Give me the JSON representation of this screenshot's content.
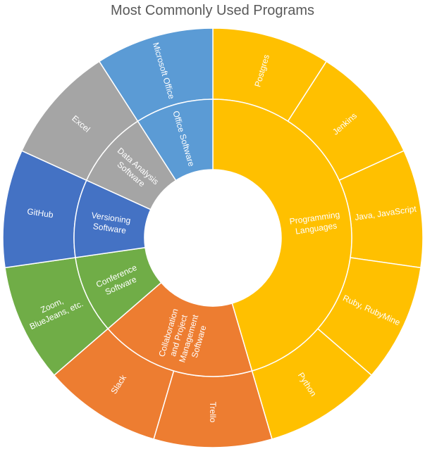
{
  "chart_data": {
    "type": "sunburst",
    "title": "Most Commonly Used Programs",
    "inner_ring": [
      {
        "label": "Programming Languages",
        "label_lines": [
          "Programming",
          "Languages"
        ],
        "value": 5,
        "color": "#FFC000"
      },
      {
        "label": "Collaboration and Project Management Software",
        "label_lines": [
          "Collaboration",
          "and Project",
          "Management",
          "Software"
        ],
        "value": 2,
        "color": "#ED7D31"
      },
      {
        "label": "Conference Software",
        "label_lines": [
          "Conference",
          "Software"
        ],
        "value": 1,
        "color": "#70AD47"
      },
      {
        "label": "Versioning Software",
        "label_lines": [
          "Versioning",
          "Software"
        ],
        "value": 1,
        "color": "#4472C4"
      },
      {
        "label": "Data Analysis Software",
        "label_lines": [
          "Data Analysis",
          "Software"
        ],
        "value": 1,
        "color": "#A5A5A5"
      },
      {
        "label": "Office Software",
        "label_lines": [
          "Office Software"
        ],
        "value": 1,
        "color": "#5B9BD5"
      }
    ],
    "outer_ring": [
      {
        "label": "Postgres",
        "parent": "Programming Languages",
        "value": 1,
        "color": "#FFC000"
      },
      {
        "label": "Jenkins",
        "parent": "Programming Languages",
        "value": 1,
        "color": "#FFC000"
      },
      {
        "label": "Java, JavaScript",
        "parent": "Programming Languages",
        "value": 1,
        "color": "#FFC000"
      },
      {
        "label": "Ruby, RubyMine",
        "parent": "Programming Languages",
        "value": 1,
        "color": "#FFC000"
      },
      {
        "label": "Python",
        "parent": "Programming Languages",
        "value": 1,
        "color": "#FFC000"
      },
      {
        "label": "Trello",
        "parent": "Collaboration and Project Management Software",
        "value": 1,
        "color": "#ED7D31"
      },
      {
        "label": "Slack",
        "parent": "Collaboration and Project Management Software",
        "value": 1,
        "color": "#ED7D31"
      },
      {
        "label": "Zoom, BlueJeans, etc.",
        "label_lines": [
          "Zoom,",
          "BlueJeans, etc."
        ],
        "parent": "Conference Software",
        "value": 1,
        "color": "#70AD47"
      },
      {
        "label": "GitHub",
        "parent": "Versioning Software",
        "value": 1,
        "color": "#4472C4"
      },
      {
        "label": "Excel",
        "parent": "Data Analysis Software",
        "value": 1,
        "color": "#A5A5A5"
      },
      {
        "label": "Microsoft Office",
        "parent": "Office Software",
        "value": 1,
        "color": "#5B9BD5"
      }
    ]
  }
}
